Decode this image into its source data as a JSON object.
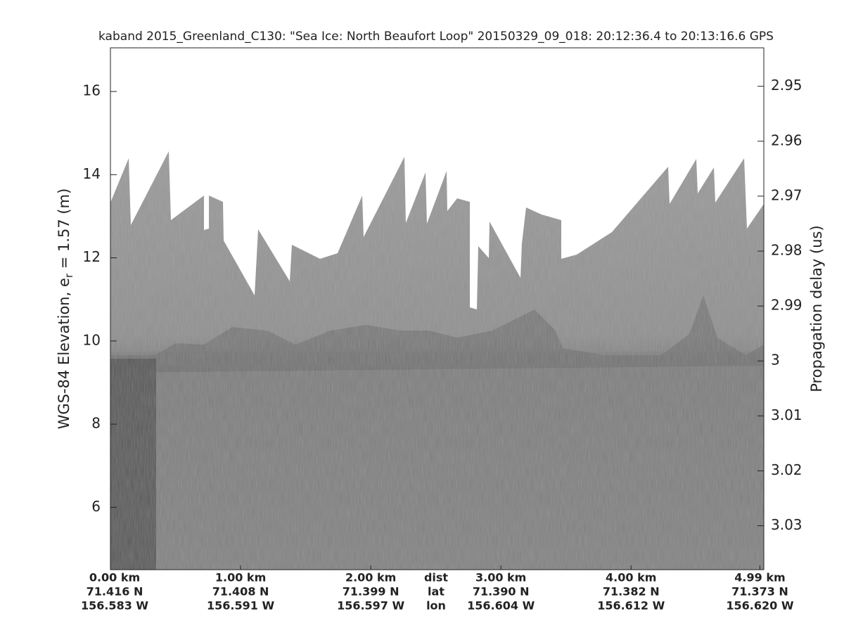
{
  "chart_data": {
    "type": "echogram",
    "title": "kaband 2015_Greenland_C130: \"Sea Ice: North Beaufort Loop\"  20150329_09_018: 20:12:36.4 to 20:13:16.6 GPS",
    "ylabel": {
      "text": "WGS-84 Elevation, e",
      "subscript": "r",
      "suffix": " = 1.57 (m)"
    },
    "y2label": "Propagation delay (us)",
    "ylim": [
      4.5,
      17.05
    ],
    "yticks": [
      6,
      8,
      10,
      12,
      14,
      16
    ],
    "y2lim": [
      2.943,
      3.038
    ],
    "y2ticks": [
      2.95,
      2.96,
      2.97,
      2.98,
      2.99,
      {
        "value": 3,
        "label": "3"
      },
      3.01,
      3.02,
      3.03
    ],
    "xlim": [
      0,
      5.02
    ],
    "xticks": [
      {
        "value": 0,
        "label": "0.00 km"
      },
      {
        "value": 1,
        "label": "1.00 km"
      },
      {
        "value": 2,
        "label": "2.00 km"
      },
      {
        "value": 3,
        "label": "3.00 km"
      },
      {
        "value": 4,
        "label": "4.00 km"
      },
      {
        "value": 4.99,
        "label": "4.99 km"
      }
    ],
    "xtick_lat": [
      "71.416 N",
      "71.408 N",
      "71.399 N",
      "71.390 N",
      "71.382 N",
      "71.373 N"
    ],
    "xtick_lon": [
      "156.583 W",
      "156.591 W",
      "156.597 W",
      "156.604 W",
      "156.612 W",
      "156.620 W"
    ],
    "row_labels": [
      "dist",
      "lat",
      "lon"
    ]
  }
}
